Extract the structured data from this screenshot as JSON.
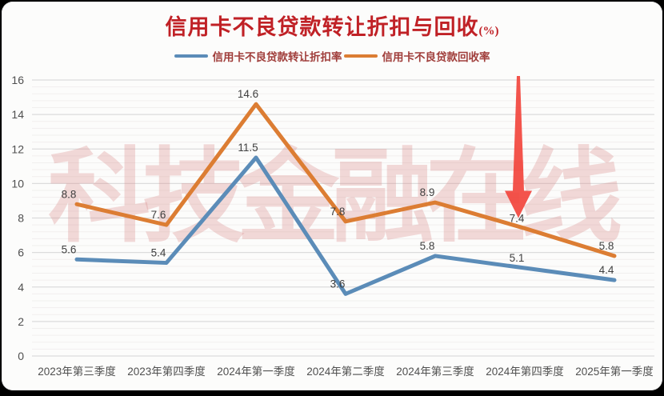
{
  "page": {
    "background_color": "#000000",
    "card_background_color": "#fcfcfb"
  },
  "header": {
    "title": "信用卡不良贷款转让折扣与回收",
    "title_suffix": "(%)",
    "title_color": "#c02126"
  },
  "legend": {
    "text_color": "#a03e3b",
    "items": [
      {
        "label": "信用卡不良贷款转让折扣率",
        "color": "#5b8cb8"
      },
      {
        "label": "信用卡不良贷款回收率",
        "color": "#dc7d33"
      }
    ]
  },
  "watermark": {
    "text": "科技金融在线",
    "color": "#dc8f8f"
  },
  "annotation": {
    "type": "down-arrow",
    "color": "#f2453d",
    "target_series": "信用卡不良贷款回收率",
    "target_category": "2024年第四季度",
    "target_value": 7.4
  },
  "chart_data": {
    "type": "line",
    "title": "信用卡不良贷款转让折扣与回收(%)",
    "categories": [
      "2023年第三季度",
      "2023年第四季度",
      "2024年第一季度",
      "2024年第二季度",
      "2024年第三季度",
      "2024年第四季度",
      "2025年第一季度"
    ],
    "series": [
      {
        "name": "信用卡不良贷款转让折扣率",
        "color": "#5b8cb8",
        "values": [
          5.6,
          5.4,
          11.5,
          3.6,
          5.8,
          5.1,
          4.4
        ]
      },
      {
        "name": "信用卡不良贷款回收率",
        "color": "#dc7d33",
        "values": [
          8.8,
          7.6,
          14.6,
          7.8,
          8.9,
          7.4,
          5.8
        ]
      }
    ],
    "xlabel": "",
    "ylabel": "",
    "ylim": [
      0,
      16
    ],
    "y_ticks": [
      0,
      2,
      4,
      6,
      8,
      10,
      12,
      14,
      16
    ],
    "y_minor_step": 0.4,
    "grid": true,
    "legend_position": "top",
    "data_labels": true,
    "tick_label_color": "#4f4f4f",
    "data_label_color": "#3f3f3f",
    "major_grid_color": "#dcdcdc",
    "minor_grid_color": "#f1efee"
  }
}
